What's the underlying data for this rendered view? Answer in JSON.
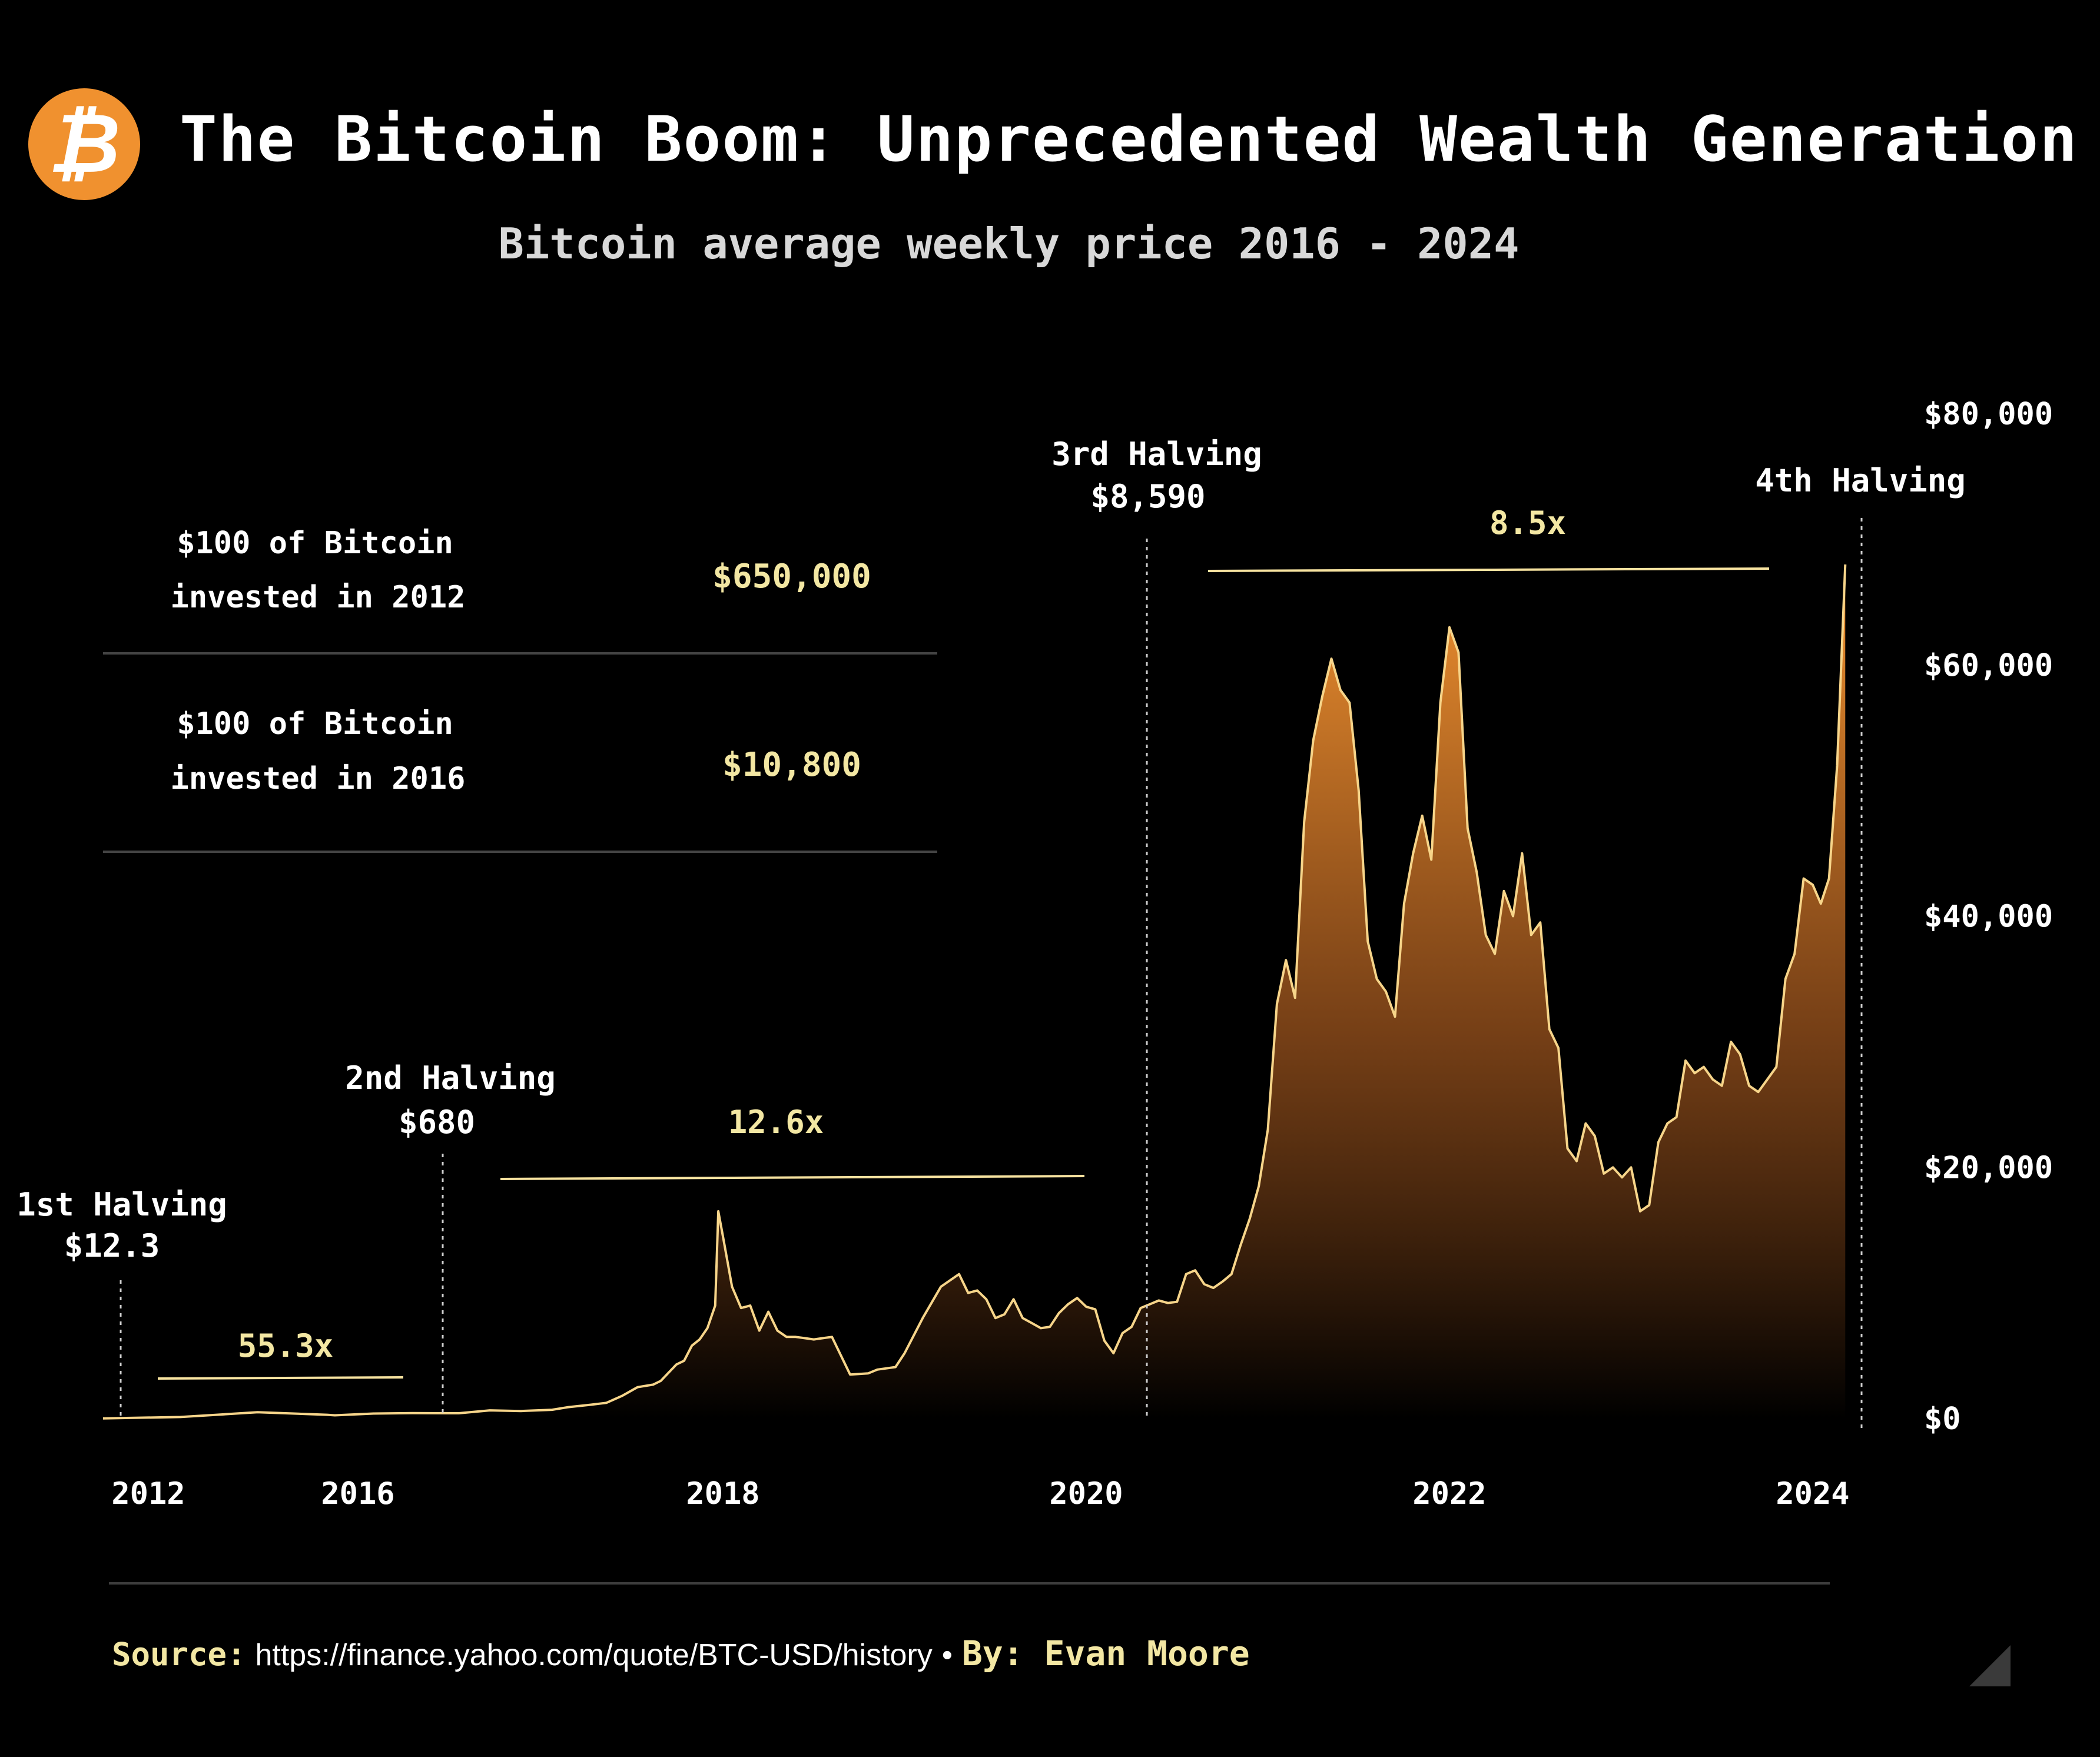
{
  "header": {
    "logo_glyph": "₿",
    "logo_icon": "bitcoin-logo-icon",
    "title": "The Bitcoin Boom: Unprecedented Wealth Generation",
    "subtitle": "Bitcoin average weekly price 2016 - 2024"
  },
  "investments": [
    {
      "line1": "$100 of Bitcoin",
      "line2": "invested in 2012",
      "value": "$650,000"
    },
    {
      "line1": "$100 of Bitcoin",
      "line2": "invested in 2016",
      "value": "$10,800"
    }
  ],
  "footer": {
    "source_label": "Source:",
    "source_url": "https://finance.yahoo.com/quote/BTC-USD/history",
    "separator": "•",
    "by": "By: Evan Moore"
  },
  "colors": {
    "background": "#000000",
    "accent": "#f0912f",
    "line": "#f7d58a",
    "highlight_text": "#f3e7a3"
  },
  "chart_data": {
    "type": "area",
    "title": "The Bitcoin Boom: Unprecedented Wealth Generation",
    "subtitle": "Bitcoin average weekly price 2016 - 2024",
    "xlabel": "",
    "ylabel": "",
    "x_ticks": [
      "2012",
      "2016",
      "2018",
      "2020",
      "2022",
      "2024"
    ],
    "y_ticks": [
      "$0",
      "$20,000",
      "$40,000",
      "$60,000",
      "$80,000"
    ],
    "ylim": [
      0,
      80000
    ],
    "y_axis_side": "right",
    "grid": false,
    "x": [
      2016.0,
      2016.3,
      2016.5,
      2016.7,
      2016.9,
      2017.0,
      2017.15,
      2017.25,
      2017.35,
      2017.45,
      2017.55,
      2017.6,
      2017.7,
      2017.75,
      2017.8,
      2017.85,
      2017.9,
      2017.95,
      2017.97,
      2018.0,
      2018.05,
      2018.1,
      2018.15,
      2018.2,
      2018.25,
      2018.3,
      2018.35,
      2018.4,
      2018.45,
      2018.5,
      2018.55,
      2018.6,
      2018.7,
      2018.8,
      2018.85,
      2018.9,
      2018.95,
      2019.0,
      2019.1,
      2019.2,
      2019.3,
      2019.35,
      2019.4,
      2019.45,
      2019.5,
      2019.55,
      2019.6,
      2019.65,
      2019.7,
      2019.75,
      2019.8,
      2019.85,
      2019.9,
      2019.95,
      2020.0,
      2020.05,
      2020.1,
      2020.15,
      2020.2,
      2020.25,
      2020.3,
      2020.35,
      2020.4,
      2020.45,
      2020.5,
      2020.55,
      2020.6,
      2020.65,
      2020.7,
      2020.75,
      2020.8,
      2020.85,
      2020.9,
      2020.95,
      2021.0,
      2021.05,
      2021.1,
      2021.15,
      2021.2,
      2021.25,
      2021.3,
      2021.35,
      2021.4,
      2021.45,
      2021.5,
      2021.55,
      2021.6,
      2021.65,
      2021.7,
      2021.75,
      2021.8,
      2021.85,
      2021.9,
      2021.95,
      2022.0,
      2022.05,
      2022.1,
      2022.15,
      2022.2,
      2022.25,
      2022.3,
      2022.35,
      2022.4,
      2022.45,
      2022.5,
      2022.55,
      2022.6,
      2022.65,
      2022.7,
      2022.75,
      2022.8,
      2022.85,
      2022.9,
      2022.95,
      2023.0,
      2023.05,
      2023.1,
      2023.15,
      2023.2,
      2023.25,
      2023.3,
      2023.35,
      2023.4,
      2023.45,
      2023.5,
      2023.55,
      2023.6,
      2023.65,
      2023.7,
      2023.75,
      2023.8,
      2023.85,
      2023.9,
      2023.95,
      2024.0,
      2024.05,
      2024.1,
      2024.15,
      2024.2
    ],
    "series": [
      {
        "values": [
          430,
          420,
          650,
          600,
          700,
          900,
          1100,
          1250,
          1800,
          2500,
          2700,
          3000,
          4300,
          4600,
          5800,
          6300,
          7200,
          9000,
          16500,
          14500,
          10500,
          8800,
          9000,
          7000,
          8500,
          7000,
          6500,
          6500,
          6400,
          6300,
          6400,
          6500,
          3500,
          3600,
          3900,
          4000,
          4100,
          5200,
          8000,
          10500,
          11500,
          10000,
          10200,
          9500,
          8000,
          8300,
          9500,
          8000,
          7600,
          7200,
          7300,
          8400,
          9100,
          9600,
          8900,
          8700,
          6200,
          5200,
          6800,
          7300,
          8800,
          9100,
          9400,
          9200,
          9300,
          11500,
          11800,
          10700,
          10400,
          10900,
          11500,
          13800,
          15900,
          18500,
          23000,
          33000,
          36500,
          33500,
          47500,
          54000,
          57500,
          60500,
          58000,
          57000,
          50000,
          38000,
          35000,
          34000,
          32000,
          41000,
          45000,
          48000,
          44500,
          57000,
          63000,
          61000,
          47000,
          43500,
          38500,
          37000,
          42000,
          40000,
          45000,
          38500,
          39500,
          31000,
          29500,
          21500,
          20500,
          23500,
          22500,
          19500,
          20000,
          19200,
          20000,
          16500,
          17000,
          22000,
          23500,
          24000,
          28500,
          27500,
          28000,
          27000,
          26500,
          30000,
          29000,
          26500,
          26000,
          27000,
          28000,
          35000,
          37000,
          43000,
          42500,
          41000,
          43000,
          52000,
          68000
        ]
      }
    ],
    "halvings": [
      {
        "label": "1st Halving",
        "price": "$12.3",
        "x": 2012.9
      },
      {
        "label": "2nd Halving",
        "price": "$680",
        "x": 2016.5
      },
      {
        "label": "3rd Halving",
        "price": "$8,590",
        "x": 2020.35
      },
      {
        "label": "4th Halving",
        "price": "",
        "x": 2024.3
      }
    ],
    "multipliers": [
      {
        "label": "55.3x",
        "from": "1st Halving",
        "to": "2nd Halving"
      },
      {
        "label": "12.6x",
        "from": "2nd Halving",
        "to": "3rd Halving"
      },
      {
        "label": "8.5x",
        "from": "3rd Halving",
        "to": "4th Halving"
      }
    ]
  }
}
